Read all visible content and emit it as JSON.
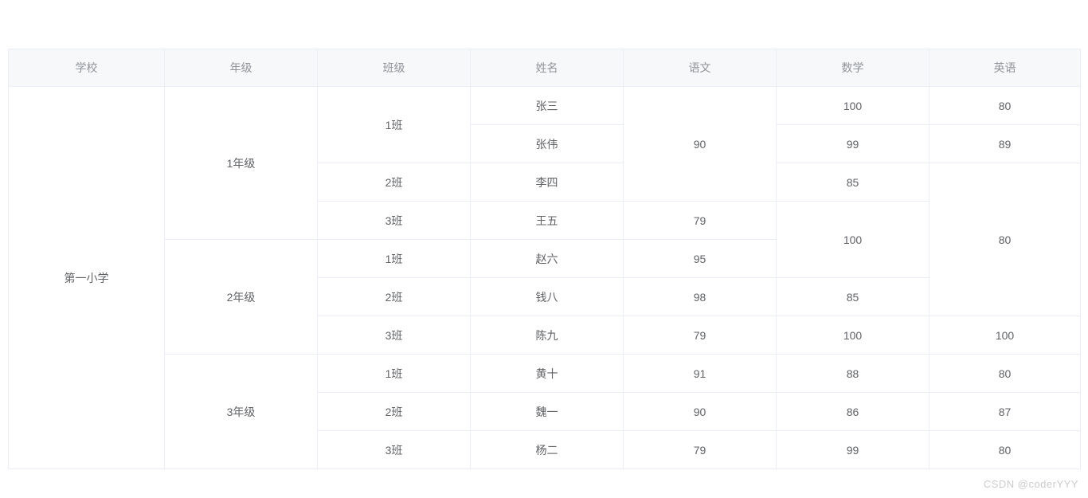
{
  "table": {
    "headers": [
      {
        "label": "学校"
      },
      {
        "label": "年级"
      },
      {
        "label": "班级"
      },
      {
        "label": "姓名"
      },
      {
        "label": "语文"
      },
      {
        "label": "数学"
      },
      {
        "label": "英语"
      }
    ],
    "rows": [
      {
        "cells": [
          {
            "text": "第一小学",
            "rowspan": 10
          },
          {
            "text": "1年级",
            "rowspan": 4
          },
          {
            "text": "1班",
            "rowspan": 2
          },
          {
            "text": "张三"
          },
          {
            "text": "90",
            "rowspan": 3
          },
          {
            "text": "100"
          },
          {
            "text": "80"
          }
        ]
      },
      {
        "cells": [
          {
            "text": "张伟"
          },
          {
            "text": "99"
          },
          {
            "text": "89"
          }
        ]
      },
      {
        "cells": [
          {
            "text": "2班"
          },
          {
            "text": "李四"
          },
          {
            "text": "85"
          },
          {
            "text": "80",
            "rowspan": 4
          }
        ]
      },
      {
        "cells": [
          {
            "text": "3班"
          },
          {
            "text": "王五"
          },
          {
            "text": "79"
          },
          {
            "text": "100",
            "rowspan": 2
          }
        ]
      },
      {
        "cells": [
          {
            "text": "2年级",
            "rowspan": 3
          },
          {
            "text": "1班"
          },
          {
            "text": "赵六"
          },
          {
            "text": "95"
          }
        ]
      },
      {
        "cells": [
          {
            "text": "2班"
          },
          {
            "text": "钱八"
          },
          {
            "text": "98"
          },
          {
            "text": "85"
          }
        ]
      },
      {
        "cells": [
          {
            "text": "3班"
          },
          {
            "text": "陈九"
          },
          {
            "text": "79"
          },
          {
            "text": "100"
          },
          {
            "text": "100"
          }
        ]
      },
      {
        "cells": [
          {
            "text": "3年级",
            "rowspan": 3
          },
          {
            "text": "1班"
          },
          {
            "text": "黄十"
          },
          {
            "text": "91"
          },
          {
            "text": "88"
          },
          {
            "text": "80"
          }
        ]
      },
      {
        "cells": [
          {
            "text": "2班"
          },
          {
            "text": "魏一"
          },
          {
            "text": "90"
          },
          {
            "text": "86"
          },
          {
            "text": "87"
          }
        ]
      },
      {
        "cells": [
          {
            "text": "3班"
          },
          {
            "text": "杨二"
          },
          {
            "text": "79"
          },
          {
            "text": "99"
          },
          {
            "text": "80"
          }
        ]
      }
    ]
  },
  "watermark": {
    "text": "CSDN @coderYYY"
  },
  "colors": {
    "header_bg": "#f7f8fa",
    "header_text": "#909399",
    "body_text": "#606266",
    "border": "#ebeef5",
    "watermark_color": "#cccccc",
    "page_bg": "#ffffff"
  }
}
